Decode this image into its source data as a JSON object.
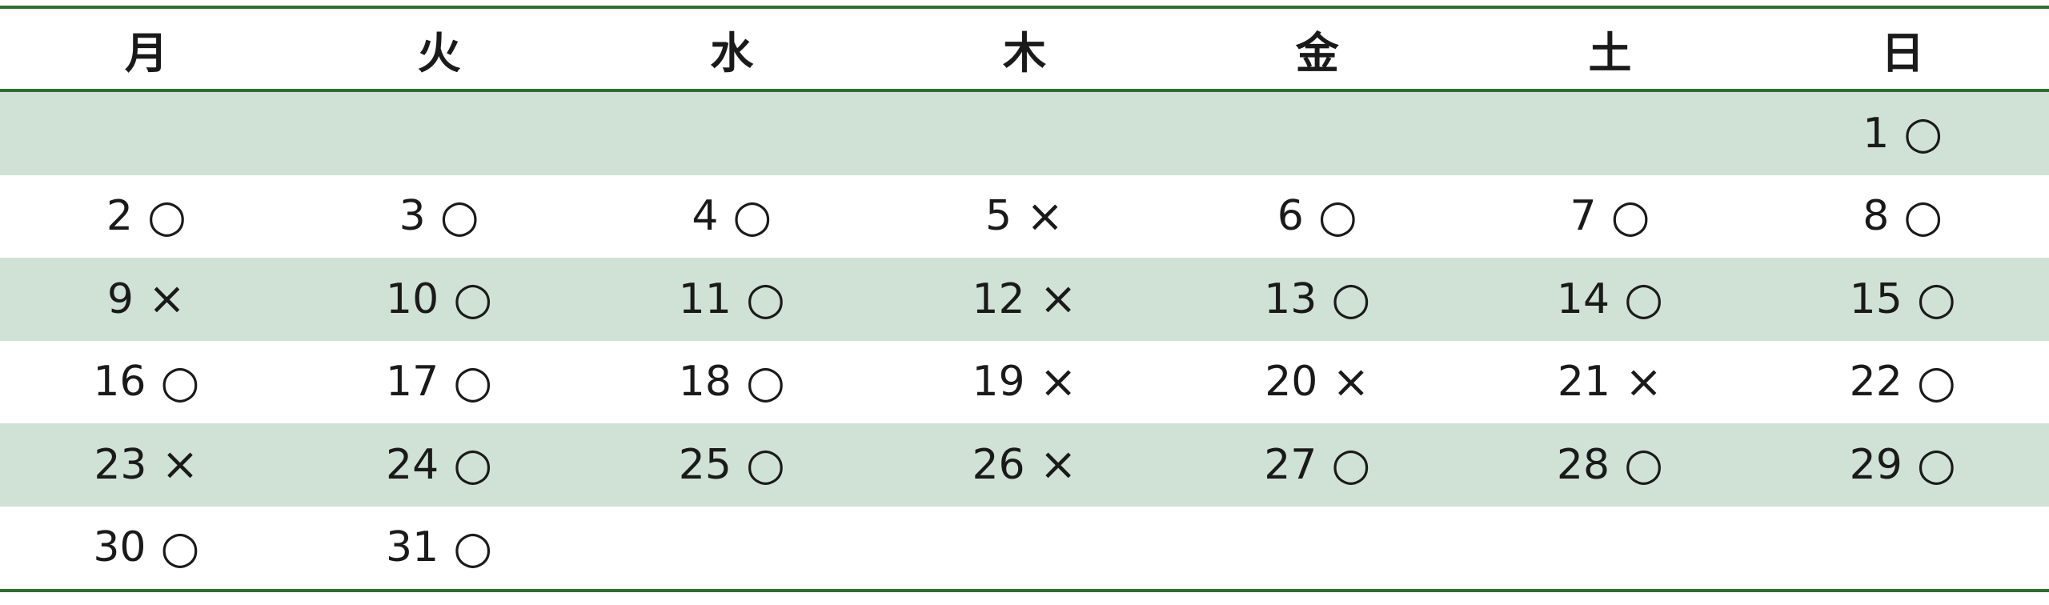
{
  "weekdays": [
    "月",
    "火",
    "水",
    "木",
    "金",
    "土",
    "日"
  ],
  "colors": {
    "rule": "#2f6e2f",
    "band": "#d0e2d5"
  },
  "weeks": [
    [
      null,
      null,
      null,
      null,
      null,
      null,
      {
        "day": "1",
        "mark": "○"
      }
    ],
    [
      {
        "day": "2",
        "mark": "○"
      },
      {
        "day": "3",
        "mark": "○"
      },
      {
        "day": "4",
        "mark": "○"
      },
      {
        "day": "5",
        "mark": "×"
      },
      {
        "day": "6",
        "mark": "○"
      },
      {
        "day": "7",
        "mark": "○"
      },
      {
        "day": "8",
        "mark": "○"
      }
    ],
    [
      {
        "day": "9",
        "mark": "×"
      },
      {
        "day": "10",
        "mark": "○"
      },
      {
        "day": "11",
        "mark": "○"
      },
      {
        "day": "12",
        "mark": "×"
      },
      {
        "day": "13",
        "mark": "○"
      },
      {
        "day": "14",
        "mark": "○"
      },
      {
        "day": "15",
        "mark": "○"
      }
    ],
    [
      {
        "day": "16",
        "mark": "○"
      },
      {
        "day": "17",
        "mark": "○"
      },
      {
        "day": "18",
        "mark": "○"
      },
      {
        "day": "19",
        "mark": "×"
      },
      {
        "day": "20",
        "mark": "×"
      },
      {
        "day": "21",
        "mark": "×"
      },
      {
        "day": "22",
        "mark": "○"
      }
    ],
    [
      {
        "day": "23",
        "mark": "×"
      },
      {
        "day": "24",
        "mark": "○"
      },
      {
        "day": "25",
        "mark": "○"
      },
      {
        "day": "26",
        "mark": "×"
      },
      {
        "day": "27",
        "mark": "○"
      },
      {
        "day": "28",
        "mark": "○"
      },
      {
        "day": "29",
        "mark": "○"
      }
    ],
    [
      {
        "day": "30",
        "mark": "○"
      },
      {
        "day": "31",
        "mark": "○"
      },
      null,
      null,
      null,
      null,
      null
    ]
  ]
}
